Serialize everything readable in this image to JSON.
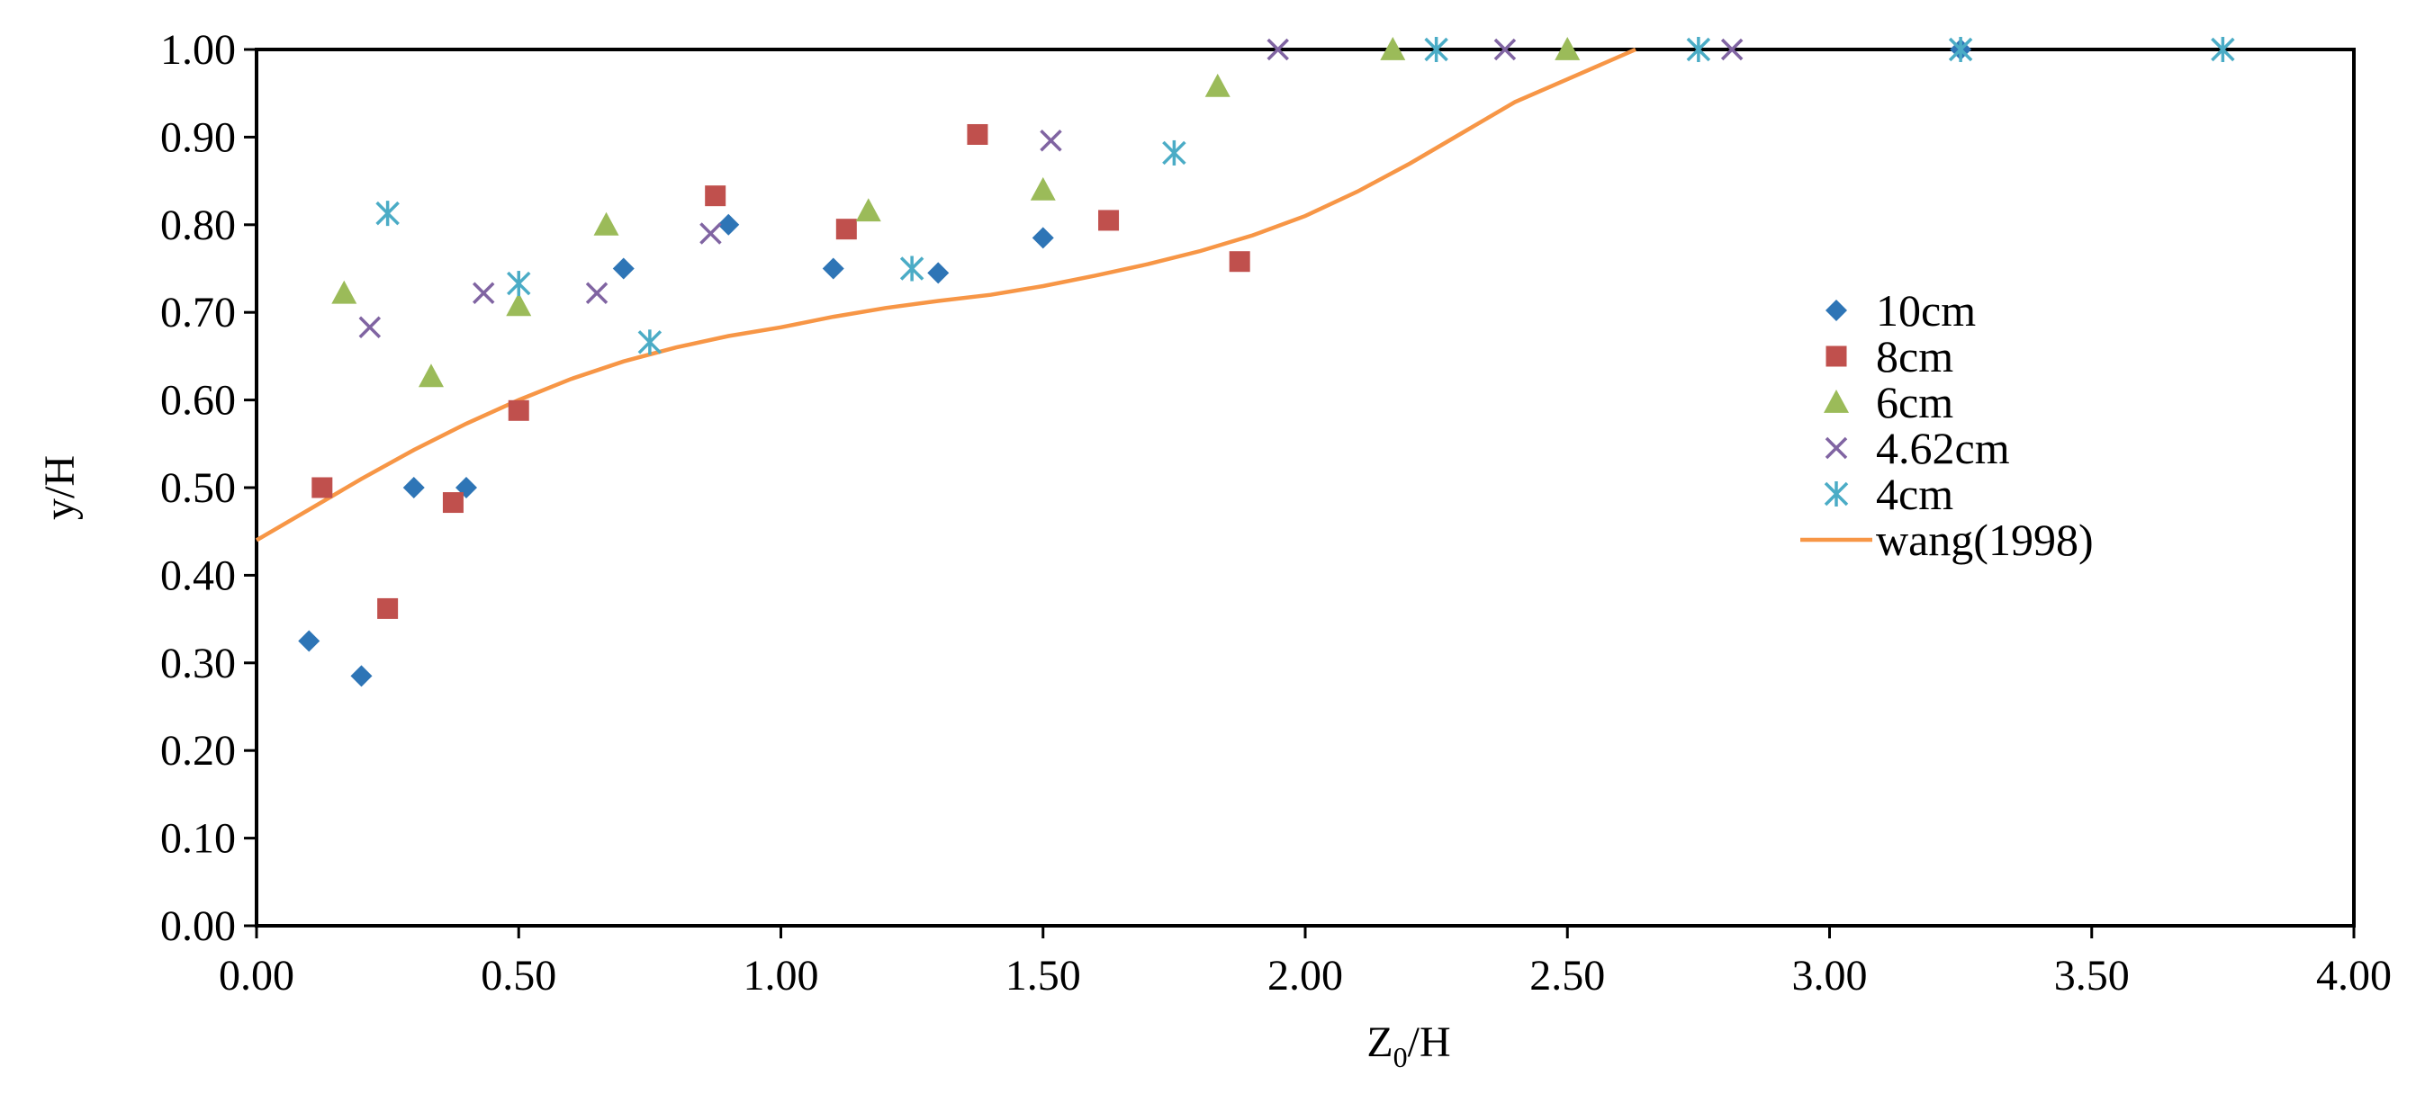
{
  "chart_data": {
    "type": "scatter",
    "title": "",
    "xlabel": "Z0/H",
    "xlabel_main": "Z",
    "xlabel_sub": "0",
    "xlabel_tail": "/H",
    "ylabel": "y/H",
    "xlim": [
      0,
      4
    ],
    "ylim": [
      0,
      1
    ],
    "x_ticks": [
      "0.00",
      "0.50",
      "1.00",
      "1.50",
      "2.00",
      "2.50",
      "3.00",
      "3.50",
      "4.00"
    ],
    "y_ticks": [
      "0.00",
      "0.10",
      "0.20",
      "0.30",
      "0.40",
      "0.50",
      "0.60",
      "0.70",
      "0.80",
      "0.90",
      "1.00"
    ],
    "grid": false,
    "legend_position": "right",
    "series": [
      {
        "name": "10cm",
        "marker": "diamond",
        "color": "#2E75B6",
        "points": [
          [
            0.1,
            0.325
          ],
          [
            0.2,
            0.285
          ],
          [
            0.3,
            0.5
          ],
          [
            0.4,
            0.5
          ],
          [
            0.7,
            0.75
          ],
          [
            0.9,
            0.8
          ],
          [
            1.1,
            0.75
          ],
          [
            1.3,
            0.745
          ],
          [
            1.5,
            0.785
          ],
          [
            3.25,
            1.0
          ]
        ]
      },
      {
        "name": "8cm",
        "marker": "square",
        "color": "#C0504D",
        "points": [
          [
            0.125,
            0.5
          ],
          [
            0.25,
            0.362
          ],
          [
            0.375,
            0.483
          ],
          [
            0.5,
            0.588
          ],
          [
            0.875,
            0.833
          ],
          [
            1.125,
            0.795
          ],
          [
            1.375,
            0.903
          ],
          [
            1.625,
            0.805
          ],
          [
            1.875,
            0.758
          ]
        ]
      },
      {
        "name": "6cm",
        "marker": "triangle",
        "color": "#9BBB59",
        "points": [
          [
            0.167,
            0.722
          ],
          [
            0.333,
            0.627
          ],
          [
            0.5,
            0.708
          ],
          [
            0.667,
            0.8
          ],
          [
            1.167,
            0.816
          ],
          [
            1.5,
            0.84
          ],
          [
            1.833,
            0.958
          ],
          [
            2.167,
            1.0
          ],
          [
            2.5,
            1.0
          ]
        ]
      },
      {
        "name": "4.62cm",
        "marker": "x",
        "color": "#8064A2",
        "points": [
          [
            0.216,
            0.683
          ],
          [
            0.433,
            0.722
          ],
          [
            0.649,
            0.722
          ],
          [
            0.866,
            0.79
          ],
          [
            1.515,
            0.896
          ],
          [
            1.948,
            1.0
          ],
          [
            2.381,
            1.0
          ],
          [
            2.814,
            1.0
          ]
        ]
      },
      {
        "name": "4cm",
        "marker": "star",
        "color": "#4BACC6",
        "points": [
          [
            0.25,
            0.813
          ],
          [
            0.5,
            0.733
          ],
          [
            0.75,
            0.666
          ],
          [
            1.25,
            0.75
          ],
          [
            1.75,
            0.882
          ],
          [
            2.25,
            1.0
          ],
          [
            2.75,
            1.0
          ],
          [
            3.25,
            1.0
          ],
          [
            3.75,
            1.0
          ]
        ]
      },
      {
        "name": "wang(1998)",
        "marker": "line",
        "color": "#F79646",
        "points": [
          [
            0.0,
            0.44
          ],
          [
            0.1,
            0.475
          ],
          [
            0.2,
            0.51
          ],
          [
            0.3,
            0.543
          ],
          [
            0.4,
            0.573
          ],
          [
            0.5,
            0.6
          ],
          [
            0.6,
            0.624
          ],
          [
            0.7,
            0.644
          ],
          [
            0.8,
            0.66
          ],
          [
            0.9,
            0.673
          ],
          [
            1.0,
            0.683
          ],
          [
            1.1,
            0.695
          ],
          [
            1.2,
            0.705
          ],
          [
            1.3,
            0.713
          ],
          [
            1.4,
            0.72
          ],
          [
            1.5,
            0.73
          ],
          [
            1.6,
            0.742
          ],
          [
            1.7,
            0.755
          ],
          [
            1.8,
            0.77
          ],
          [
            1.9,
            0.788
          ],
          [
            2.0,
            0.81
          ],
          [
            2.1,
            0.838
          ],
          [
            2.2,
            0.87
          ],
          [
            2.3,
            0.905
          ],
          [
            2.4,
            0.94
          ],
          [
            2.5,
            0.966
          ],
          [
            2.63,
            1.0
          ]
        ]
      }
    ]
  }
}
